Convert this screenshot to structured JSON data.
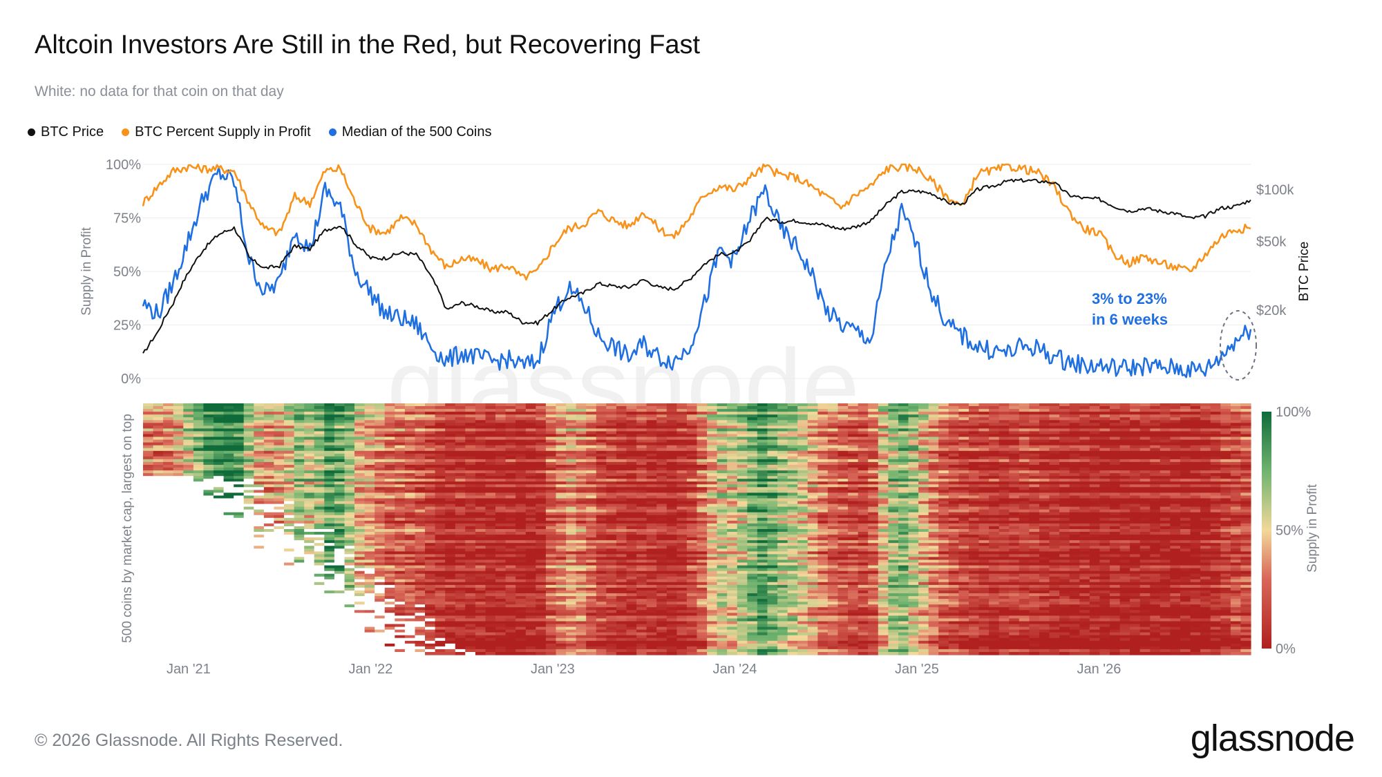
{
  "header": {
    "title": "Altcoin Investors Are Still in the Red, but Recovering Fast",
    "subtitle": "White: no data for that coin on that day"
  },
  "legend": [
    {
      "label": "BTC Price",
      "color": "#111111"
    },
    {
      "label": "BTC Percent Supply in Profit",
      "color": "#f7931a"
    },
    {
      "label": "Median of the 500 Coins",
      "color": "#1f6fe0"
    }
  ],
  "annotation": {
    "line1": "3% to 23%",
    "line2": "in 6 weeks"
  },
  "watermark": "glassnode",
  "footer": {
    "copyright": "© 2026 Glassnode. All Rights Reserved.",
    "brand": "glassnode"
  },
  "chart_data": [
    {
      "type": "line",
      "x_unit": "month",
      "x": [
        "2020-10",
        "2020-11",
        "2020-12",
        "2021-01",
        "2021-02",
        "2021-03",
        "2021-04",
        "2021-05",
        "2021-06",
        "2021-07",
        "2021-08",
        "2021-09",
        "2021-10",
        "2021-11",
        "2021-12",
        "2022-01",
        "2022-02",
        "2022-03",
        "2022-04",
        "2022-05",
        "2022-06",
        "2022-07",
        "2022-08",
        "2022-09",
        "2022-10",
        "2022-11",
        "2022-12",
        "2023-01",
        "2023-02",
        "2023-03",
        "2023-04",
        "2023-05",
        "2023-06",
        "2023-07",
        "2023-08",
        "2023-09",
        "2023-10",
        "2023-11",
        "2023-12",
        "2024-01",
        "2024-02",
        "2024-03",
        "2024-04",
        "2024-05",
        "2024-06",
        "2024-07",
        "2024-08",
        "2024-09",
        "2024-10",
        "2024-11",
        "2024-12",
        "2025-01",
        "2025-02",
        "2025-03",
        "2025-04",
        "2025-05",
        "2025-06",
        "2025-07",
        "2025-08",
        "2025-09",
        "2025-10",
        "2025-11",
        "2025-12",
        "2026-01",
        "2026-02",
        "2026-03",
        "2026-04",
        "2026-05",
        "2026-06",
        "2026-07",
        "2026-08",
        "2026-09",
        "2026-10",
        "2026-11"
      ],
      "x_ticks": [
        "Jan '21",
        "Jan '22",
        "Jan '23",
        "Jan '24",
        "Jan '25",
        "Jan '26"
      ],
      "y_left": {
        "label": "Supply in Profit",
        "ticks": [
          "0%",
          "25%",
          "50%",
          "75%",
          "100%"
        ],
        "ylim": [
          0,
          100
        ]
      },
      "y_right": {
        "label": "BTC Price",
        "ticks": [
          "$20k",
          "$50k",
          "$100k"
        ],
        "scale": "log",
        "ylim": [
          8000,
          140000
        ]
      },
      "series": [
        {
          "name": "BTC Price",
          "axis": "right",
          "color": "#111111",
          "values": [
            11000,
            15000,
            22000,
            33000,
            45000,
            55000,
            60000,
            40000,
            35000,
            36000,
            47000,
            45000,
            58000,
            62000,
            48000,
            40000,
            40000,
            43000,
            42000,
            31000,
            20000,
            22000,
            21000,
            19500,
            19500,
            17000,
            16800,
            20000,
            23500,
            25000,
            28500,
            27500,
            27000,
            30000,
            27000,
            26500,
            30000,
            37000,
            42000,
            43000,
            50000,
            68000,
            65000,
            66000,
            64000,
            62000,
            59000,
            61000,
            66000,
            82000,
            97000,
            98000,
            95000,
            84000,
            82000,
            100000,
            105000,
            112000,
            113000,
            112000,
            110000,
            93000,
            89000,
            88000,
            80000,
            75000,
            78000,
            75000,
            73000,
            68000,
            70000,
            78000,
            80000,
            87000
          ]
        },
        {
          "name": "BTC Percent Supply in Profit",
          "axis": "left",
          "color": "#f7931a",
          "values": [
            82,
            90,
            97,
            99,
            98,
            98,
            97,
            82,
            70,
            68,
            85,
            82,
            97,
            98,
            82,
            70,
            68,
            75,
            72,
            60,
            52,
            56,
            55,
            51,
            53,
            47,
            50,
            62,
            70,
            72,
            78,
            74,
            71,
            78,
            70,
            66,
            75,
            86,
            90,
            88,
            94,
            99,
            95,
            94,
            90,
            85,
            80,
            86,
            90,
            98,
            99,
            98,
            92,
            85,
            80,
            96,
            97,
            99,
            98,
            96,
            90,
            78,
            70,
            68,
            58,
            54,
            57,
            54,
            52,
            50,
            58,
            66,
            70,
            70
          ]
        },
        {
          "name": "Median of the 500 Coins",
          "axis": "left",
          "color": "#1f6fe0",
          "values": [
            35,
            30,
            45,
            65,
            85,
            96,
            92,
            55,
            40,
            45,
            70,
            60,
            88,
            80,
            50,
            40,
            30,
            28,
            25,
            15,
            8,
            12,
            10,
            8,
            9,
            6,
            8,
            30,
            42,
            35,
            20,
            15,
            10,
            16,
            10,
            8,
            15,
            35,
            60,
            55,
            75,
            88,
            70,
            62,
            50,
            32,
            25,
            22,
            18,
            55,
            78,
            62,
            40,
            25,
            20,
            15,
            13,
            12,
            15,
            14,
            10,
            8,
            6,
            6,
            5,
            5,
            6,
            5,
            5,
            4,
            4,
            10,
            18,
            23
          ]
        }
      ]
    },
    {
      "type": "heatmap",
      "title": "",
      "ylabel": "500 coins by market cap, largest on top",
      "xlabel": "",
      "x_ticks": [
        "Jan '21",
        "Jan '22",
        "Jan '23",
        "Jan '24",
        "Jan '25",
        "Jan '26"
      ],
      "colorbar": {
        "label": "Supply in Profit",
        "ticks": [
          "0%",
          "50%",
          "100%"
        ],
        "colors": [
          "#b0201e",
          "#f2d89a",
          "#0f6b3a"
        ],
        "no_data_color": "#ffffff"
      },
      "n_rows": 500
    }
  ]
}
